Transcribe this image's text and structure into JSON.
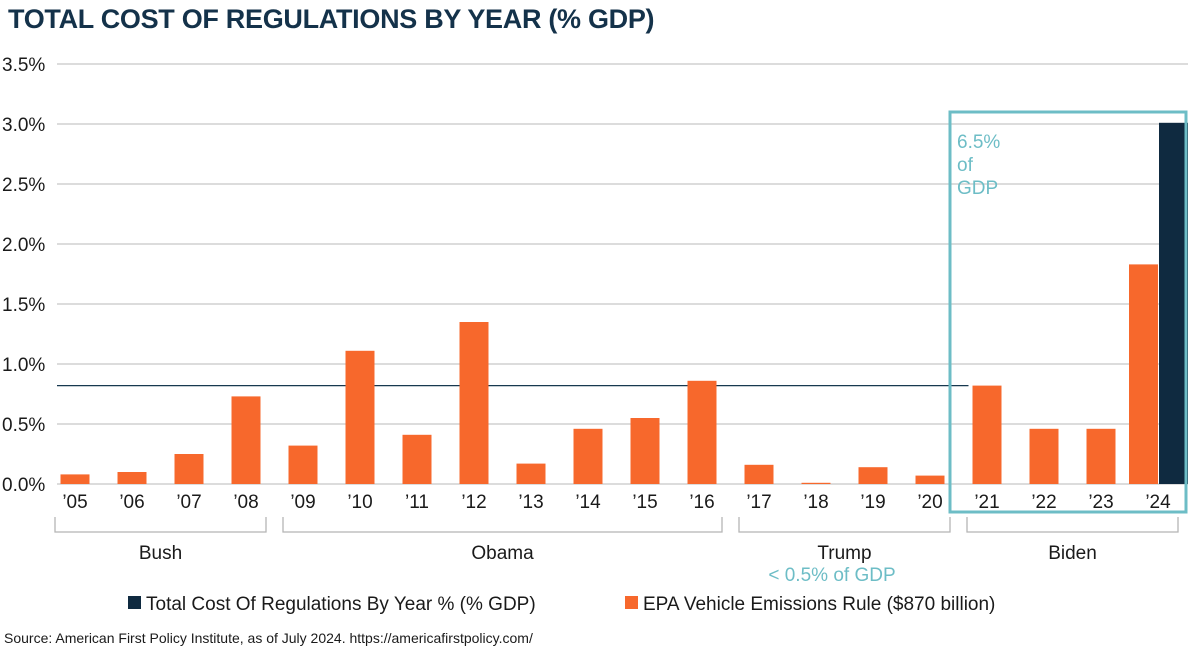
{
  "title": "TOTAL COST OF REGULATIONS BY YEAR (% GDP)",
  "source": "Source: American First Policy Institute, as of July 2024. https://americafirstpolicy.com/",
  "colors": {
    "orange": "#f7682c",
    "navy": "#0f2a40",
    "teal": "#6dbdc6",
    "grid": "#c8c8c8",
    "bracket": "#b5b5b5",
    "refline": "#17384f"
  },
  "chart_data": {
    "type": "bar",
    "title": "TOTAL COST OF REGULATIONS BY YEAR (% GDP)",
    "categories": [
      "’05",
      "’06",
      "’07",
      "’08",
      "’09",
      "’10",
      "’11",
      "’12",
      "’13",
      "’14",
      "’15",
      "’16",
      "’17",
      "’18",
      "’19",
      "’20",
      "’21",
      "’22",
      "’23",
      "’24"
    ],
    "series": [
      {
        "name": "Total Cost Of Regulations By Year % (% GDP)",
        "color": "#0f2a40",
        "values": [
          null,
          null,
          null,
          null,
          null,
          null,
          null,
          null,
          null,
          null,
          null,
          null,
          null,
          null,
          null,
          null,
          null,
          null,
          null,
          3.01
        ]
      },
      {
        "name": "EPA Vehicle Emissions Rule ($870 billion)",
        "color": "#f7682c",
        "values": [
          0.08,
          0.1,
          0.25,
          0.73,
          0.32,
          1.11,
          0.41,
          1.35,
          0.17,
          0.46,
          0.55,
          0.86,
          0.16,
          0.01,
          0.14,
          0.07,
          0.82,
          0.46,
          0.46,
          1.83
        ]
      }
    ],
    "ylim": [
      0,
      3.5
    ],
    "yticks": [
      0,
      0.5,
      1.0,
      1.5,
      2.0,
      2.5,
      3.0,
      3.5
    ],
    "ytick_labels": [
      "0.0%",
      "0.5%",
      "1.0%",
      "1.5%",
      "2.0%",
      "2.5%",
      "3.0%",
      "3.5%"
    ],
    "reference_line": {
      "value": 0.82,
      "from_category": "’05",
      "to_category": "’21"
    },
    "groups": [
      {
        "label": "Bush",
        "from": 0,
        "to": 3
      },
      {
        "label": "Obama",
        "from": 4,
        "to": 11
      },
      {
        "label": "Trump",
        "from": 12,
        "to": 15
      },
      {
        "label": "Biden",
        "from": 16,
        "to": 19
      }
    ],
    "annotations": {
      "biden_box": [
        "6.5%",
        "of",
        "GDP"
      ],
      "trump_note": "< 0.5% of GDP"
    },
    "legend": [
      {
        "label": "Total Cost Of Regulations By Year % (% GDP)",
        "color": "#0f2a40"
      },
      {
        "label": "EPA Vehicle Emissions Rule ($870 billion)",
        "color": "#f7682c"
      }
    ],
    "legend_position": "bottom",
    "grid": true
  }
}
